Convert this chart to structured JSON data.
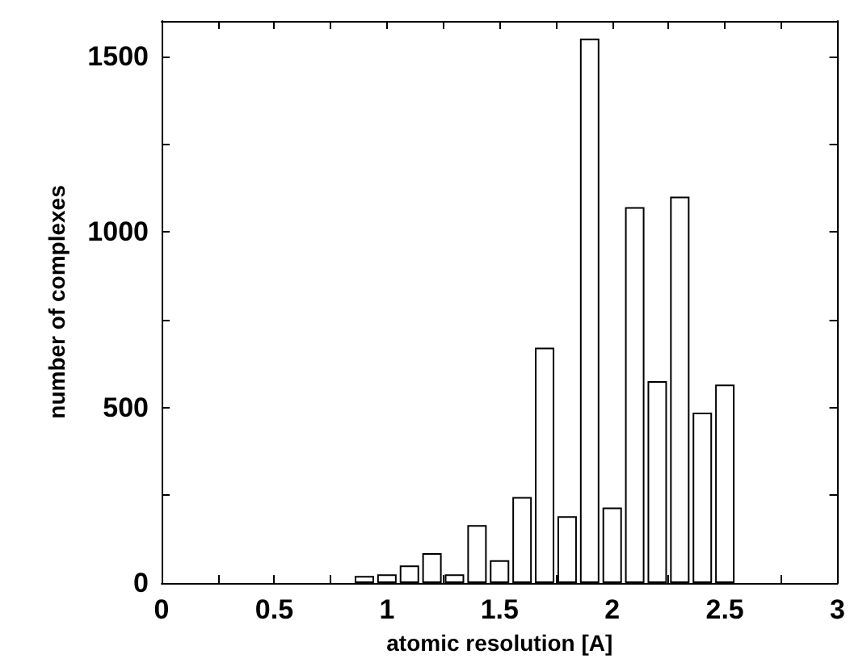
{
  "chart_data": {
    "type": "bar",
    "xlabel": "atomic resolution [A]",
    "ylabel": "number of complexes",
    "x": [
      0.9,
      1.0,
      1.1,
      1.2,
      1.3,
      1.4,
      1.5,
      1.6,
      1.7,
      1.8,
      1.9,
      2.0,
      2.1,
      2.2,
      2.3,
      2.4,
      2.5
    ],
    "values": [
      20,
      25,
      50,
      85,
      25,
      165,
      65,
      245,
      670,
      190,
      1550,
      215,
      1070,
      575,
      1100,
      485,
      565
    ],
    "color": "#ffffff",
    "xlim": [
      0,
      3
    ],
    "xticks": [
      0,
      {
        "value": 0.25,
        "label": null
      },
      0.5,
      {
        "value": 0.75,
        "label": null
      },
      1,
      {
        "value": 1.25,
        "label": null
      },
      1.5,
      {
        "value": 1.75,
        "label": null
      },
      2,
      {
        "value": 2.25,
        "label": null
      },
      2.5,
      {
        "value": 2.75,
        "label": null
      },
      3
    ],
    "ylim": [
      0,
      1600
    ],
    "yticks": [
      0,
      {
        "value": 250,
        "label": null
      },
      500,
      {
        "value": 750,
        "label": null
      },
      1000,
      {
        "value": 1250,
        "label": null
      },
      1500
    ],
    "grid": false
  }
}
